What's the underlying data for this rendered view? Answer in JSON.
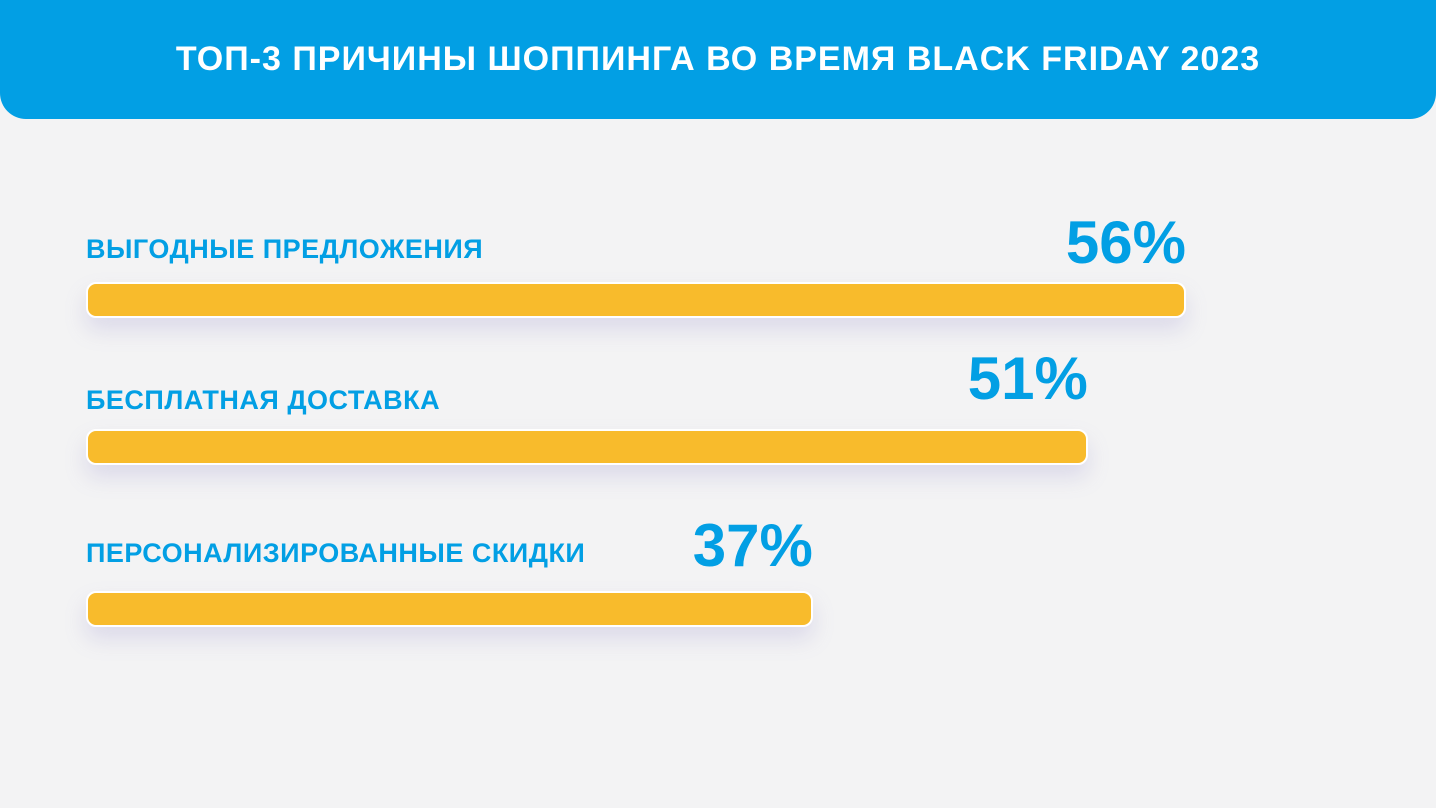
{
  "header": {
    "title": "ТОП-3 ПРИЧИНЫ ШОППИНГА ВО ВРЕМЯ BLACK FRIDAY 2023"
  },
  "colors": {
    "header_background": "#029fe4",
    "accent_text": "#029fe4",
    "bar_fill": "#f8bb2c",
    "page_background": "#f3f3f4"
  },
  "chart_data": {
    "type": "bar",
    "orientation": "horizontal",
    "title": "ТОП-3 ПРИЧИНЫ ШОППИНГА ВО ВРЕМЯ BLACK FRIDAY 2023",
    "categories": [
      "ВЫГОДНЫЕ ПРЕДЛОЖЕНИЯ",
      "БЕСПЛАТНАЯ ДОСТАВКА",
      "ПЕРСОНАЛИЗИРОВАННЫЕ СКИДКИ"
    ],
    "values": [
      56,
      51,
      37
    ],
    "value_labels": [
      "56%",
      "51%",
      "37%"
    ],
    "unit": "%",
    "grid": false,
    "legend": "none"
  }
}
